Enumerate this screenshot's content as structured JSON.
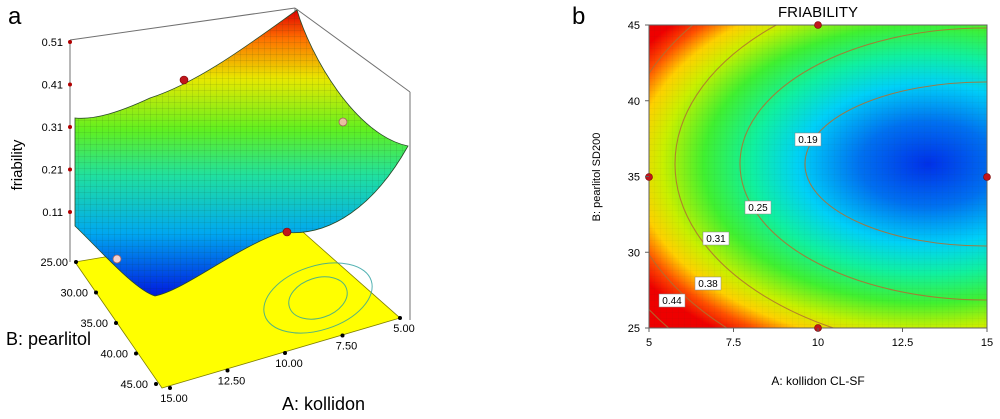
{
  "panel_a": {
    "letter": "a",
    "z_label": "friability",
    "x_label": "A: kollidon",
    "y_label": "B: pearlitol",
    "z_ticks": [
      "0.51",
      "0.41",
      "0.31",
      "0.21",
      "0.11"
    ],
    "x_ticks": [
      "15.00",
      "12.50",
      "10.00",
      "7.50",
      "5.00"
    ],
    "y_ticks": [
      "25.00",
      "30.00",
      "35.00",
      "40.00",
      "45.00"
    ]
  },
  "panel_b": {
    "letter": "b",
    "title": "FRIABILITY",
    "x_label": "A: kollidon CL-SF",
    "y_label": "B: pearlitol SD200",
    "x_ticks": [
      "5",
      "7.5",
      "10",
      "12.5",
      "15"
    ],
    "y_ticks": [
      "25",
      "30",
      "35",
      "40",
      "45"
    ],
    "contour_labels": [
      "0.19",
      "0.25",
      "0.31",
      "0.38",
      "0.44"
    ]
  },
  "chart_data": [
    {
      "type": "surface",
      "panel": "a",
      "xlabel": "A: kollidon",
      "ylabel": "B: pearlitol",
      "zlabel": "friability",
      "xlim": [
        5,
        15
      ],
      "ylim": [
        25,
        45
      ],
      "zlim": [
        0.11,
        0.51
      ],
      "z_min_approx": 0.13,
      "z_max_approx": 0.51,
      "design_points": [
        {
          "A": 5,
          "B": 25,
          "friability": 0.31
        },
        {
          "A": 5,
          "B": 45,
          "friability": 0.41
        },
        {
          "A": 10,
          "B": 25,
          "friability": 0.21
        },
        {
          "A": 15,
          "B": 35,
          "friability": 0.14
        }
      ],
      "colors": [
        "#0000e6",
        "#00e5ff",
        "#00ff00",
        "#ffff00",
        "#ff0000"
      ]
    },
    {
      "type": "contour",
      "panel": "b",
      "title": "FRIABILITY",
      "xlabel": "A: kollidon CL-SF",
      "ylabel": "B: pearlitol SD200",
      "xlim": [
        5,
        15
      ],
      "ylim": [
        25,
        45
      ],
      "contour_levels": [
        0.19,
        0.25,
        0.31,
        0.38,
        0.44
      ],
      "minimum_region": {
        "A": 14,
        "B": 37,
        "value": 0.13
      },
      "design_points": [
        {
          "A": 10,
          "B": 45
        },
        {
          "A": 5,
          "B": 35
        },
        {
          "A": 15,
          "B": 35
        },
        {
          "A": 10,
          "B": 25
        }
      ],
      "colors": [
        "#0000e6",
        "#00e5ff",
        "#00ff00",
        "#ffff00",
        "#ff0000"
      ]
    }
  ]
}
